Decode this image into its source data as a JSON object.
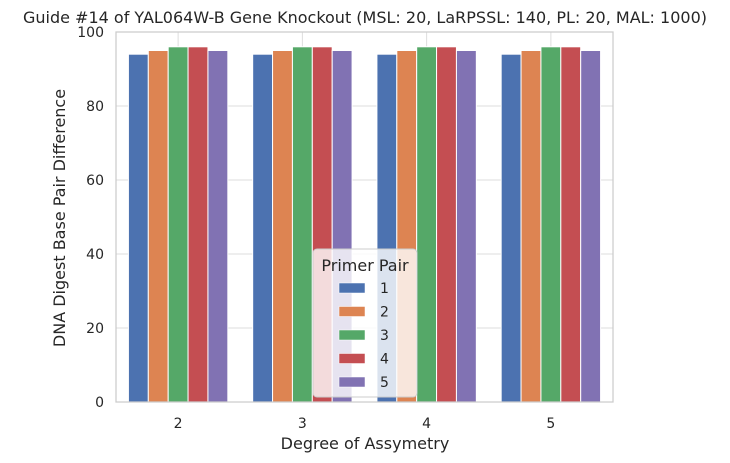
{
  "chart_data": {
    "type": "bar",
    "title": "Guide #14 of YAL064W-B Gene Knockout (MSL: 20, LaRPSSL: 140, PL: 20, MAL: 1000)",
    "xlabel": "Degree of Assymetry",
    "ylabel": "DNA Digest Base Pair Difference",
    "categories": [
      "2",
      "3",
      "4",
      "5"
    ],
    "ylim": [
      0,
      100
    ],
    "yticks": [
      "0",
      "20",
      "40",
      "60",
      "80",
      "100"
    ],
    "grid": true,
    "legend": {
      "title": "Primer Pair",
      "placement": "bottom-center"
    },
    "series": [
      {
        "name": "1",
        "color": "#4c72b0",
        "values": [
          94,
          94,
          94,
          94
        ]
      },
      {
        "name": "2",
        "color": "#dd8452",
        "values": [
          95,
          95,
          95,
          95
        ]
      },
      {
        "name": "3",
        "color": "#55a868",
        "values": [
          96,
          96,
          96,
          96
        ]
      },
      {
        "name": "4",
        "color": "#c44e52",
        "values": [
          96,
          96,
          96,
          96
        ]
      },
      {
        "name": "5",
        "color": "#8172b3",
        "values": [
          95,
          95,
          95,
          95
        ]
      }
    ]
  }
}
